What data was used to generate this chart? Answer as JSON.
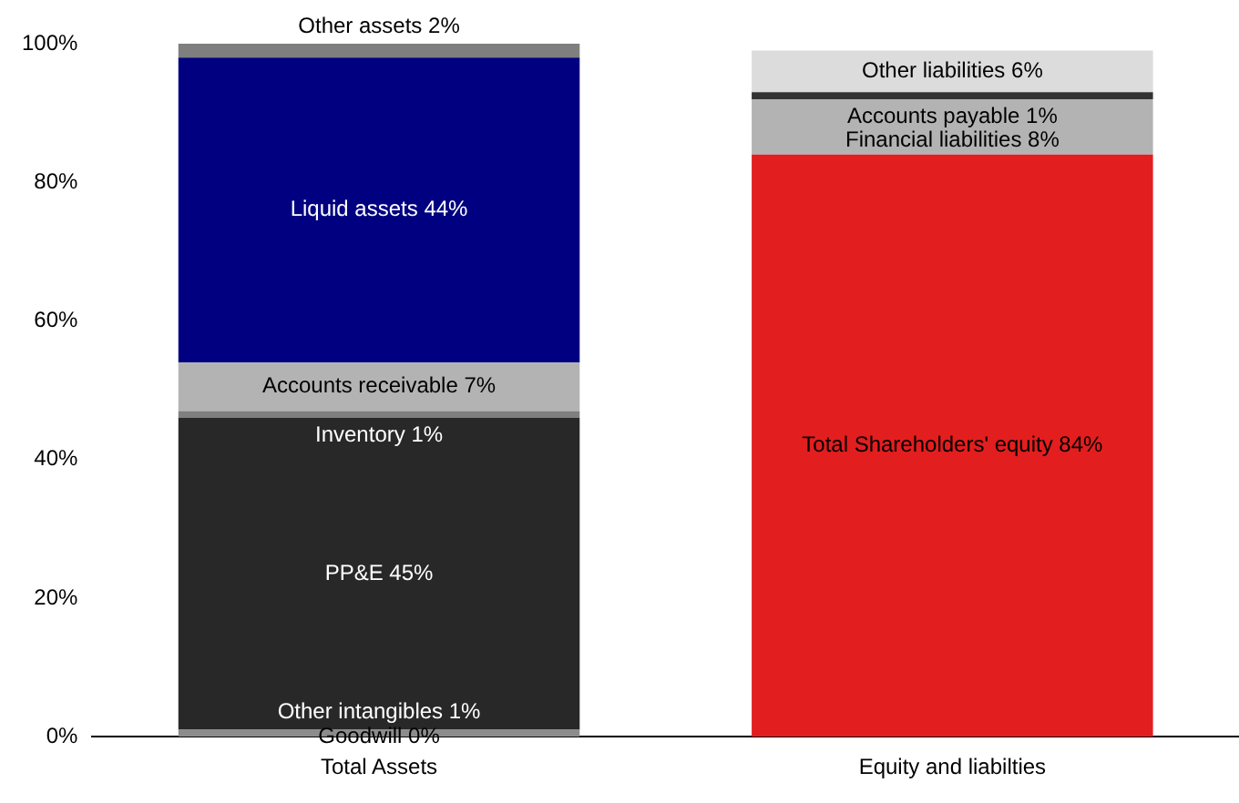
{
  "chart_data": {
    "type": "bar",
    "stacked": true,
    "legend": false,
    "grid": false,
    "categories": [
      "Total Assets",
      "Equity and liabilties"
    ],
    "ylim": [
      0,
      100
    ],
    "yticks": [
      {
        "value": 0,
        "label": "0%"
      },
      {
        "value": 20,
        "label": "20%"
      },
      {
        "value": 40,
        "label": "40%"
      },
      {
        "value": 60,
        "label": "60%"
      },
      {
        "value": 80,
        "label": "80%"
      },
      {
        "value": 100,
        "label": "100%"
      }
    ],
    "series": [
      {
        "name": "Goodwill",
        "color": "#a6a6a6",
        "values": [
          0,
          null
        ],
        "value_labels": [
          "0%",
          null
        ]
      },
      {
        "name": "Other intangibles",
        "color": "#8c8c8c",
        "values": [
          1,
          null
        ],
        "value_labels": [
          "1%",
          null
        ]
      },
      {
        "name": "PP&E",
        "color": "#282828",
        "values": [
          45,
          null
        ],
        "value_labels": [
          "45%",
          null
        ]
      },
      {
        "name": "Inventory",
        "color": "#7f7f7f",
        "values": [
          1,
          null
        ],
        "value_labels": [
          "1%",
          null
        ]
      },
      {
        "name": "Accounts receivable",
        "color": "#b3b3b3",
        "values": [
          7,
          null
        ],
        "value_labels": [
          "7%",
          null
        ]
      },
      {
        "name": "Liquid assets",
        "color": "#000080",
        "values": [
          44,
          null
        ],
        "value_labels": [
          "44%",
          null
        ]
      },
      {
        "name": "Other assets",
        "color": "#7f7f7f",
        "values": [
          2,
          null
        ],
        "value_labels": [
          "2%",
          null
        ]
      },
      {
        "name": "Total Shareholders' equity",
        "color": "#e31e1e",
        "values": [
          null,
          84
        ],
        "value_labels": [
          null,
          "84%"
        ]
      },
      {
        "name": "Financial liabilities",
        "color": "#b3b3b3",
        "values": [
          null,
          8
        ],
        "value_labels": [
          null,
          "8%"
        ]
      },
      {
        "name": "Accounts payable",
        "color": "#333333",
        "values": [
          null,
          1
        ],
        "value_labels": [
          null,
          "1%"
        ]
      },
      {
        "name": "Other liabilities",
        "color": "#dcdcdc",
        "values": [
          null,
          6
        ],
        "value_labels": [
          null,
          "6%"
        ]
      }
    ]
  }
}
